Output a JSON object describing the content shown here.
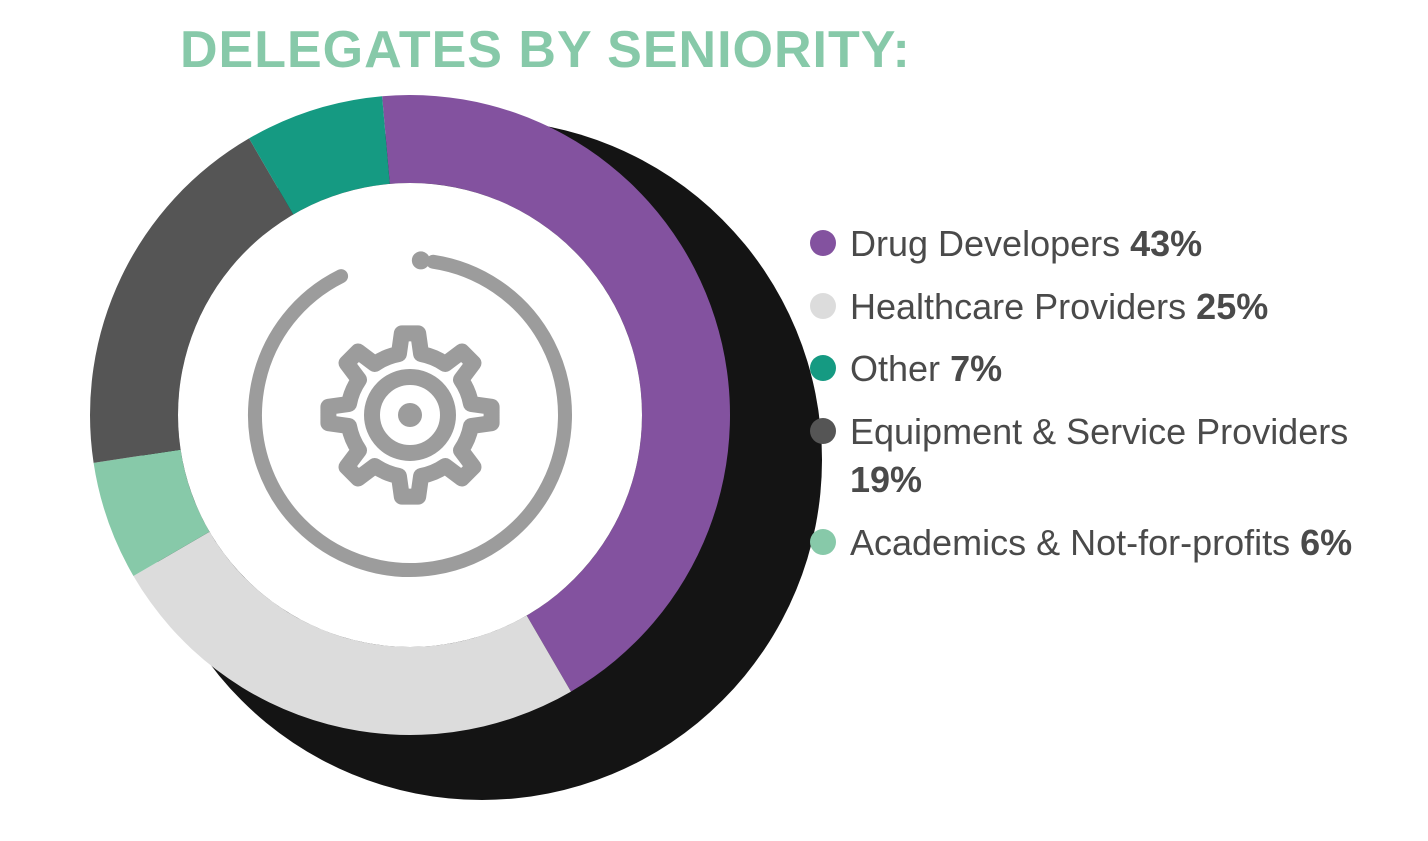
{
  "title": {
    "text": "DELEGATES BY SENIORITY:",
    "color": "#87c9a9",
    "fontsize": 52,
    "fontweight": 700
  },
  "chart": {
    "type": "donut",
    "start_angle_deg": -5,
    "direction": "clockwise",
    "outer_radius": 320,
    "inner_radius": 232,
    "background_color": "#ffffff",
    "shadow_color": "#000000",
    "slices": [
      {
        "key": "drug_developers",
        "value": 43,
        "color": "#83529f"
      },
      {
        "key": "healthcare_providers",
        "value": 25,
        "color": "#dcdcdc"
      },
      {
        "key": "academics",
        "value": 6,
        "color": "#87c9a9"
      },
      {
        "key": "equipment_service",
        "value": 19,
        "color": "#555555"
      },
      {
        "key": "other",
        "value": 7,
        "color": "#159a82"
      }
    ],
    "center_icon": {
      "name": "gear-icon",
      "ring_color": "#9c9c9c",
      "gear_color": "#9c9c9c",
      "ring_stroke": 14,
      "ring_radius": 155,
      "ring_gap_deg": 35
    }
  },
  "legend": {
    "label_color": "#4a4a4a",
    "label_fontsize": 36,
    "items": [
      {
        "dot_color": "#83529f",
        "label": "Drug Developers",
        "pct": "43%"
      },
      {
        "dot_color": "#dcdcdc",
        "label": "Healthcare Providers",
        "pct": "25%"
      },
      {
        "dot_color": "#159a82",
        "label": "Other",
        "pct": "7%"
      },
      {
        "dot_color": "#555555",
        "label": "Equipment & Service Providers",
        "pct": "19%"
      },
      {
        "dot_color": "#87c9a9",
        "label": "Academics & Not-for-profits",
        "pct": "6%"
      }
    ]
  }
}
